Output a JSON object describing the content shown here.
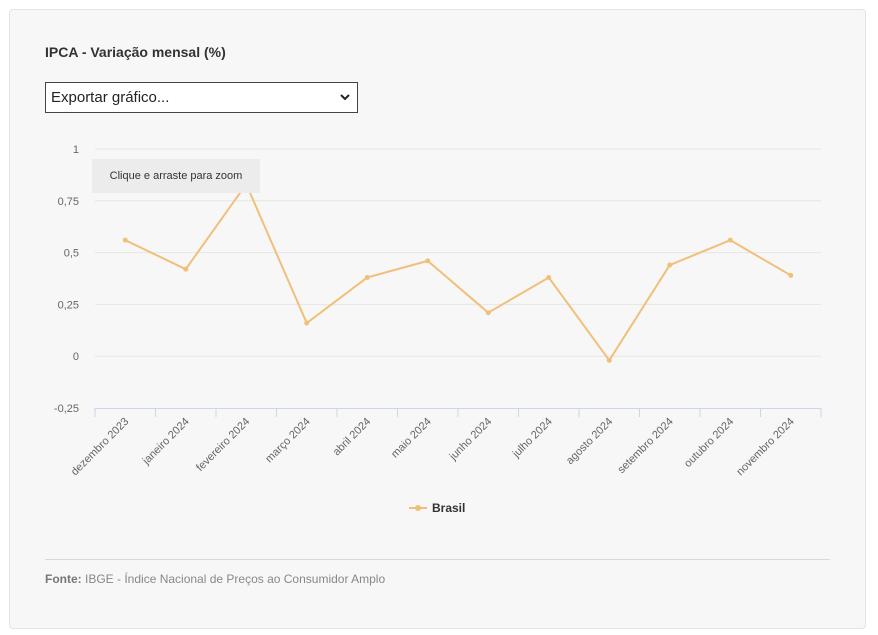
{
  "header": {
    "title": "IPCA - Variação mensal (%)"
  },
  "export_select": {
    "label": "Exportar gráfico...",
    "icon": "chevron-down-icon"
  },
  "zoom_hint": "Clique e arraste para zoom",
  "footer": {
    "source_label": "Fonte:",
    "source_text": "IBGE - Índice Nacional de Preços ao Consumidor Amplo"
  },
  "colors": {
    "series": "#f0c07a",
    "grid": "#e6e6e6",
    "axis": "#ccd6eb"
  },
  "chart_data": {
    "type": "line",
    "title": "IPCA - Variação mensal (%)",
    "categories": [
      "dezembro 2023",
      "janeiro 2024",
      "fevereiro 2024",
      "março 2024",
      "abril 2024",
      "maio 2024",
      "junho 2024",
      "julho 2024",
      "agosto 2024",
      "setembro 2024",
      "outubro 2024",
      "novembro 2024"
    ],
    "series": [
      {
        "name": "Brasil",
        "values": [
          0.56,
          0.42,
          0.83,
          0.16,
          0.38,
          0.46,
          0.21,
          0.38,
          -0.02,
          0.44,
          0.56,
          0.39
        ]
      }
    ],
    "yticks": [
      "1",
      "0,75",
      "0,5",
      "0,25",
      "0",
      "-0,25"
    ],
    "ytick_values": [
      1,
      0.75,
      0.5,
      0.25,
      0,
      -0.25
    ],
    "ylim": [
      -0.25,
      1
    ],
    "grid": true,
    "legend_position": "bottom-center"
  }
}
